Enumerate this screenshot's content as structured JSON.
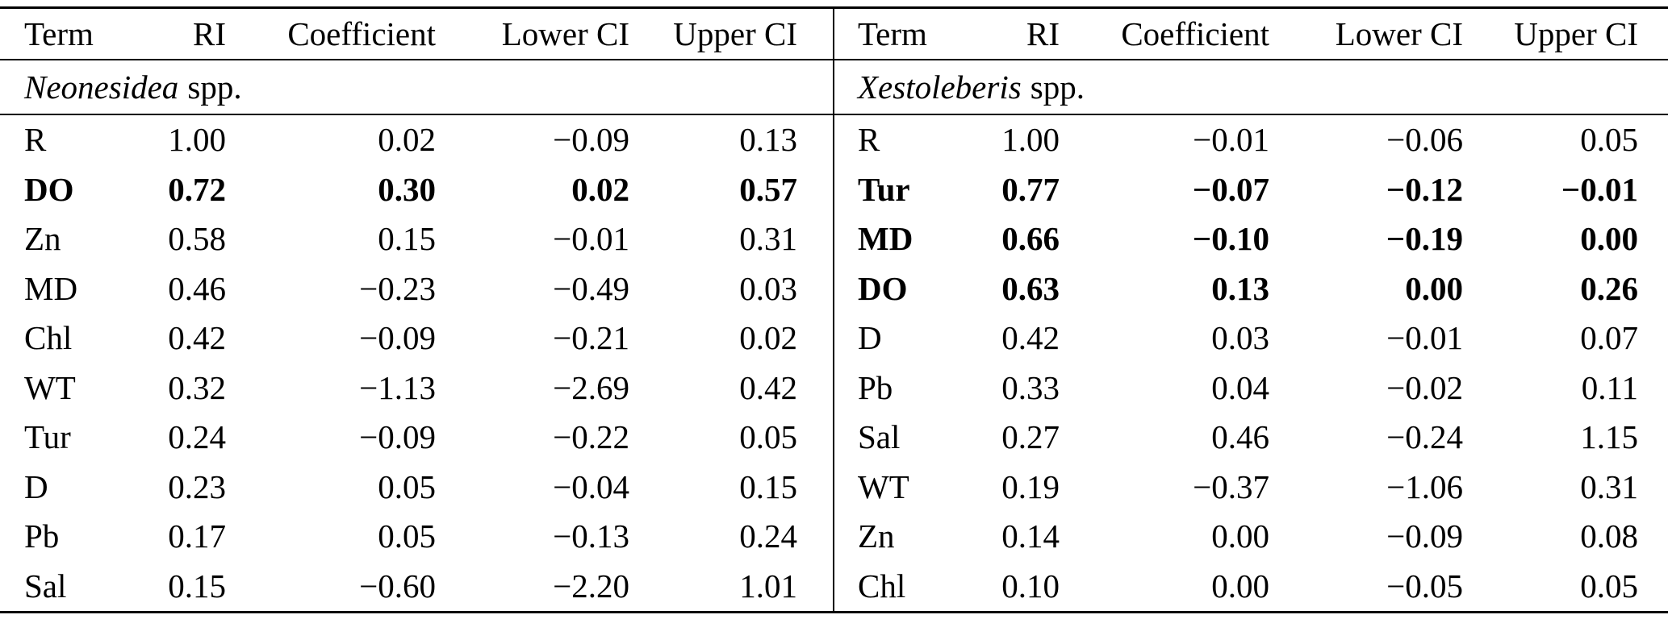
{
  "table": {
    "columns": [
      "Term",
      "RI",
      "Coefficient",
      "Lower CI",
      "Upper CI"
    ],
    "sections": [
      {
        "species": "Neonesidea",
        "species_suffix": "spp.",
        "rows": [
          {
            "term": "R",
            "ri": "1.00",
            "coef": "0.02",
            "lower": "−0.09",
            "upper": "0.13",
            "bold": false
          },
          {
            "term": "DO",
            "ri": "0.72",
            "coef": "0.30",
            "lower": "0.02",
            "upper": "0.57",
            "bold": true
          },
          {
            "term": "Zn",
            "ri": "0.58",
            "coef": "0.15",
            "lower": "−0.01",
            "upper": "0.31",
            "bold": false
          },
          {
            "term": "MD",
            "ri": "0.46",
            "coef": "−0.23",
            "lower": "−0.49",
            "upper": "0.03",
            "bold": false
          },
          {
            "term": "Chl",
            "ri": "0.42",
            "coef": "−0.09",
            "lower": "−0.21",
            "upper": "0.02",
            "bold": false
          },
          {
            "term": "WT",
            "ri": "0.32",
            "coef": "−1.13",
            "lower": "−2.69",
            "upper": "0.42",
            "bold": false
          },
          {
            "term": "Tur",
            "ri": "0.24",
            "coef": "−0.09",
            "lower": "−0.22",
            "upper": "0.05",
            "bold": false
          },
          {
            "term": "D",
            "ri": "0.23",
            "coef": "0.05",
            "lower": "−0.04",
            "upper": "0.15",
            "bold": false
          },
          {
            "term": "Pb",
            "ri": "0.17",
            "coef": "0.05",
            "lower": "−0.13",
            "upper": "0.24",
            "bold": false
          },
          {
            "term": "Sal",
            "ri": "0.15",
            "coef": "−0.60",
            "lower": "−2.20",
            "upper": "1.01",
            "bold": false
          }
        ]
      },
      {
        "species": "Xestoleberis",
        "species_suffix": "spp.",
        "rows": [
          {
            "term": "R",
            "ri": "1.00",
            "coef": "−0.01",
            "lower": "−0.06",
            "upper": "0.05",
            "bold": false
          },
          {
            "term": "Tur",
            "ri": "0.77",
            "coef": "−0.07",
            "lower": "−0.12",
            "upper": "−0.01",
            "bold": true
          },
          {
            "term": "MD",
            "ri": "0.66",
            "coef": "−0.10",
            "lower": "−0.19",
            "upper": "0.00",
            "bold": true
          },
          {
            "term": "DO",
            "ri": "0.63",
            "coef": "0.13",
            "lower": "0.00",
            "upper": "0.26",
            "bold": true
          },
          {
            "term": "D",
            "ri": "0.42",
            "coef": "0.03",
            "lower": "−0.01",
            "upper": "0.07",
            "bold": false
          },
          {
            "term": "Pb",
            "ri": "0.33",
            "coef": "0.04",
            "lower": "−0.02",
            "upper": "0.11",
            "bold": false
          },
          {
            "term": "Sal",
            "ri": "0.27",
            "coef": "0.46",
            "lower": "−0.24",
            "upper": "1.15",
            "bold": false
          },
          {
            "term": "WT",
            "ri": "0.19",
            "coef": "−0.37",
            "lower": "−1.06",
            "upper": "0.31",
            "bold": false
          },
          {
            "term": "Zn",
            "ri": "0.14",
            "coef": "0.00",
            "lower": "−0.09",
            "upper": "0.08",
            "bold": false
          },
          {
            "term": "Chl",
            "ri": "0.10",
            "coef": "0.00",
            "lower": "−0.05",
            "upper": "0.05",
            "bold": false
          }
        ]
      }
    ]
  }
}
